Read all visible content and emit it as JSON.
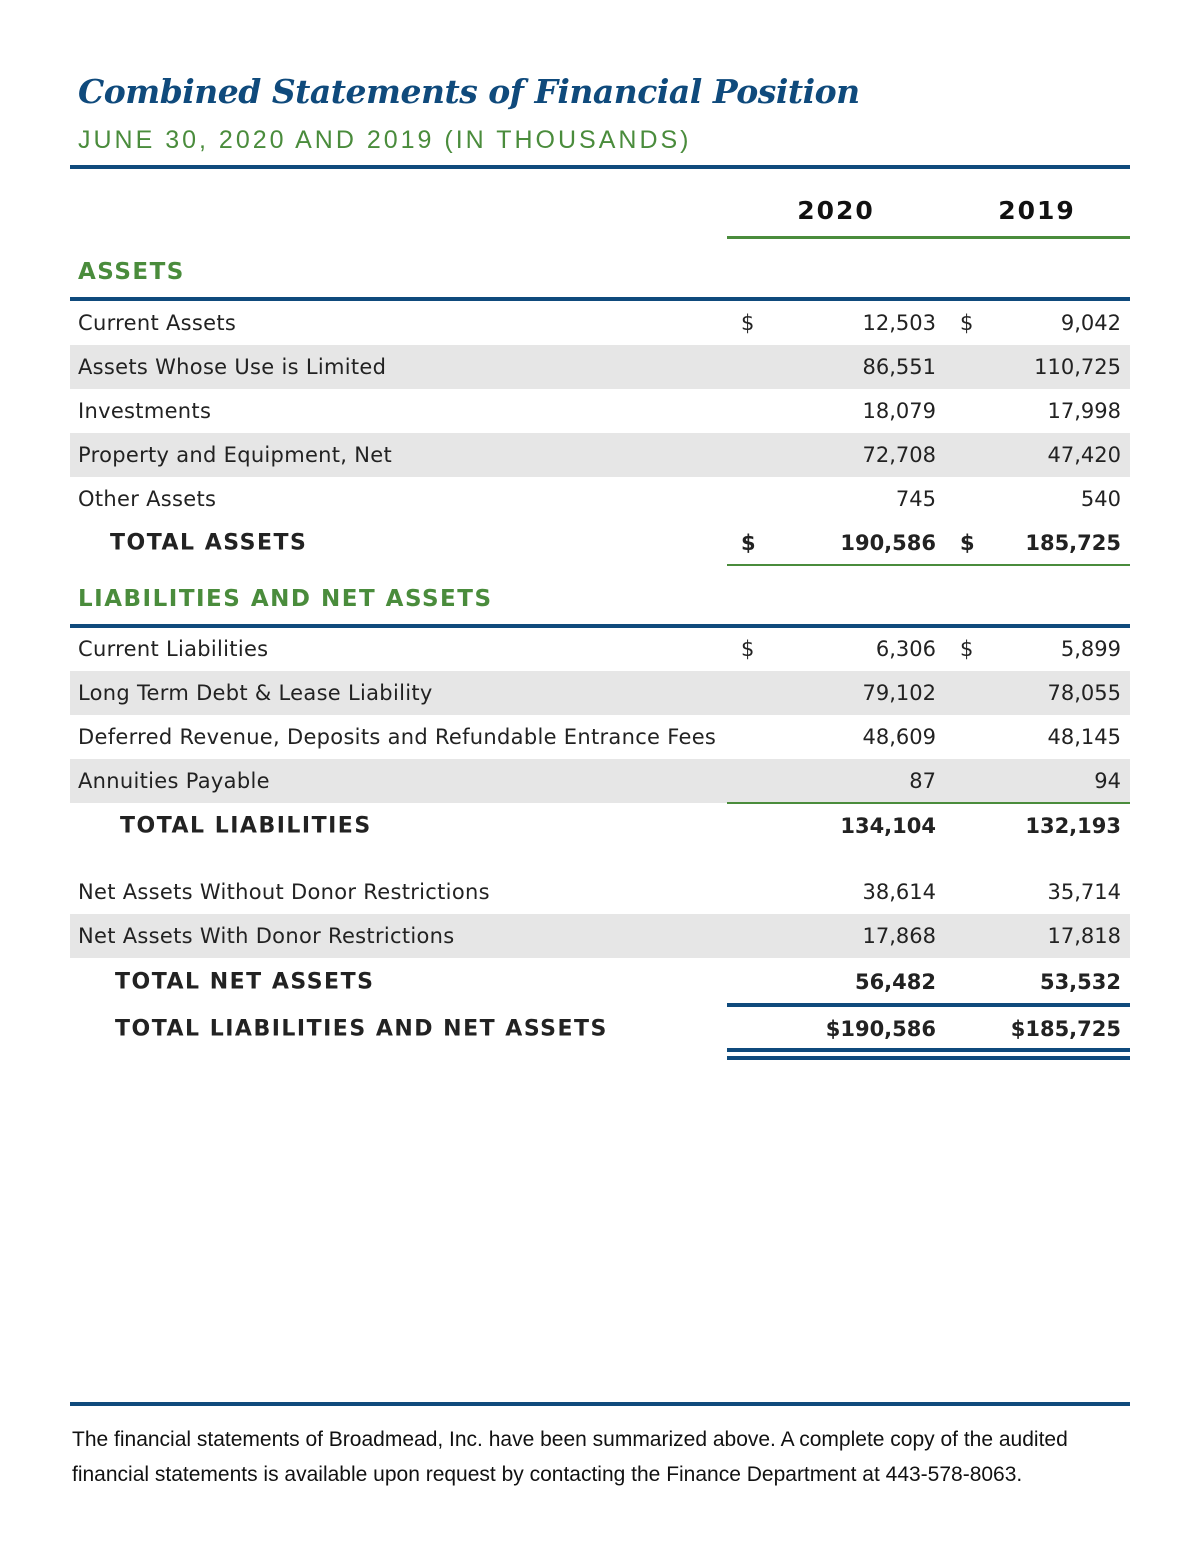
{
  "header": {
    "title": "Combined Statements of Financial Position",
    "subtitle": "JUNE 30, 2020 AND 2019 (IN THOUSANDS)"
  },
  "columns": [
    "2020",
    "2019"
  ],
  "colors": {
    "navy": "#0f4a7c",
    "green": "#4a8c3c",
    "band": "#e6e6e6"
  },
  "assets": {
    "heading": "ASSETS",
    "rows": [
      {
        "label": "Current Assets",
        "d1": "$",
        "v2020": "12,503",
        "d2": "$",
        "v2019": "9,042"
      },
      {
        "label": "Assets Whose Use is Limited",
        "v2020": "86,551",
        "v2019": "110,725"
      },
      {
        "label": "Investments",
        "v2020": "18,079",
        "v2019": "17,998"
      },
      {
        "label": "Property and Equipment, Net",
        "v2020": "72,708",
        "v2019": "47,420"
      },
      {
        "label": "Other Assets",
        "v2020": "745",
        "v2019": "540"
      },
      {
        "label": "TOTAL ASSETS",
        "d1": "$",
        "v2020": "190,586",
        "d2": "$",
        "v2019": "185,725"
      }
    ]
  },
  "liabilities": {
    "heading": "LIABILITIES AND NET ASSETS",
    "rows": [
      {
        "label": "Current Liabilities",
        "d1": "$",
        "v2020": "6,306",
        "d2": "$",
        "v2019": "5,899"
      },
      {
        "label": "Long Term Debt & Lease Liability",
        "v2020": "79,102",
        "v2019": "78,055"
      },
      {
        "label": "Deferred Revenue, Deposits and Refundable Entrance Fees",
        "v2020": "48,609",
        "v2019": "48,145"
      },
      {
        "label": "Annuities Payable",
        "v2020": "87",
        "v2019": "94"
      },
      {
        "label": "TOTAL LIABILITIES",
        "v2020": "134,104",
        "v2019": "132,193"
      },
      {
        "label": "Net Assets Without Donor Restrictions",
        "v2020": "38,614",
        "v2019": "35,714"
      },
      {
        "label": "Net Assets With Donor Restrictions",
        "v2020": "17,868",
        "v2019": "17,818"
      },
      {
        "label": "TOTAL NET ASSETS",
        "v2020": "56,482",
        "v2019": "53,532"
      },
      {
        "label": "TOTAL LIABILITIES AND NET ASSETS",
        "v2020": "$190,586",
        "v2019": "$185,725"
      }
    ]
  },
  "footer": {
    "note": "The financial statements of Broadmead, Inc. have been summarized above.  A complete copy of the audited financial statements is available upon request by contacting the Finance Department at 443-578-8063."
  }
}
